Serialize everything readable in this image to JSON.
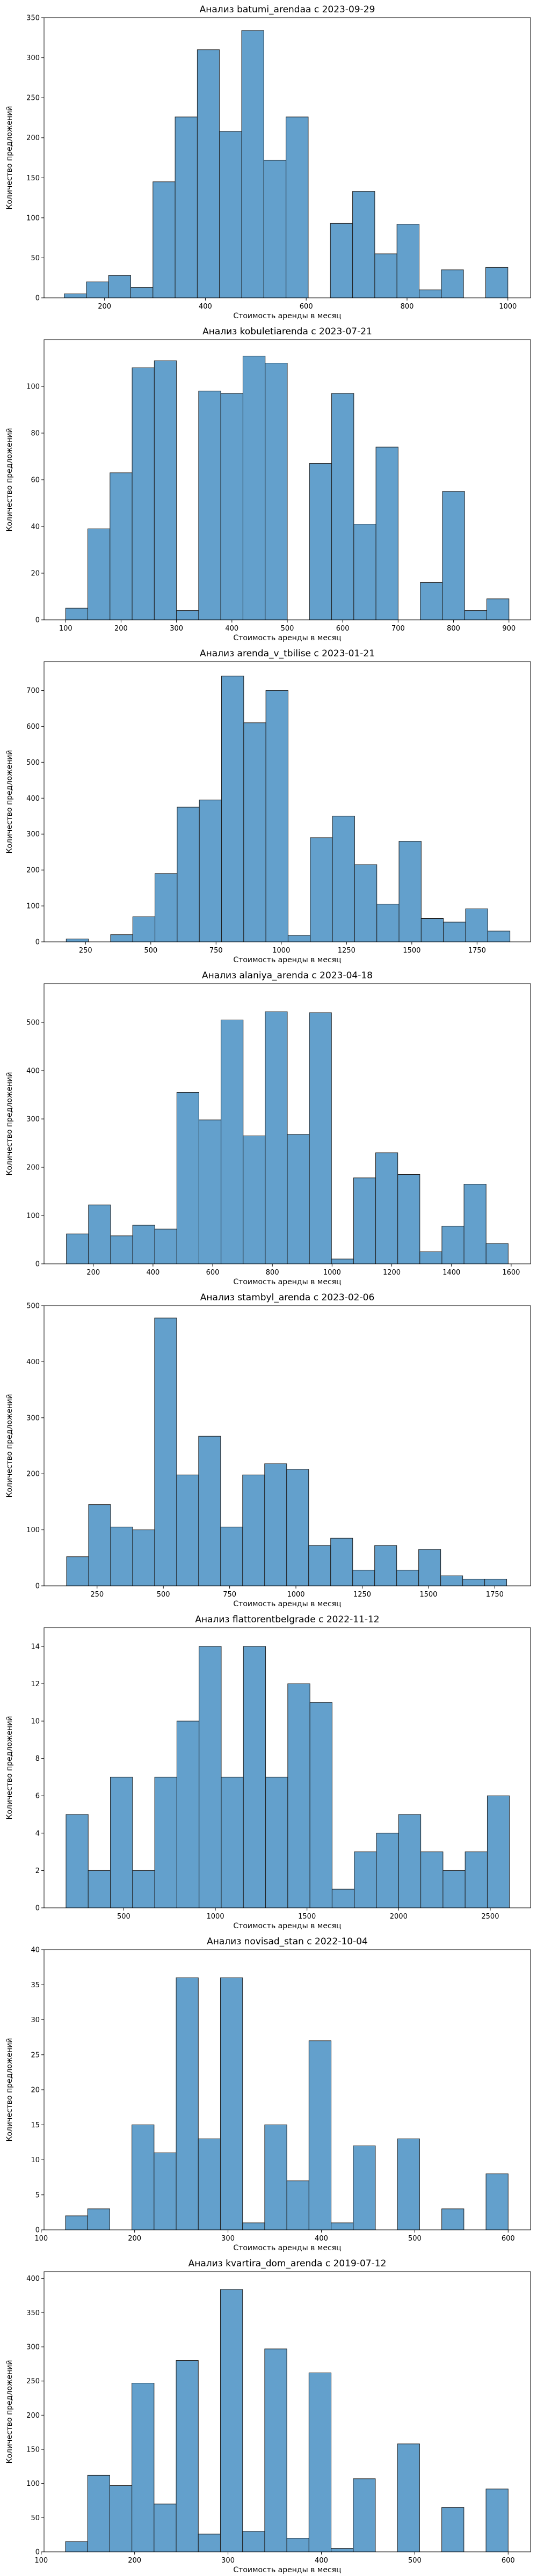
{
  "chart_data": [
    {
      "type": "bar",
      "title": "Анализ batumi_arendaa с 2023-09-29",
      "xlabel": "Стоимость аренды в месяц",
      "ylabel": "Количество предложений",
      "xlim": [
        80,
        1045
      ],
      "ylim": [
        0,
        350
      ],
      "xticks": [
        200,
        400,
        600,
        800,
        1000
      ],
      "yticks": [
        0,
        50,
        100,
        150,
        200,
        250,
        300,
        350
      ],
      "bin_start": 120,
      "bin_width": 44,
      "values": [
        5,
        20,
        28,
        13,
        145,
        226,
        310,
        208,
        334,
        172,
        226,
        0,
        93,
        133,
        55,
        92,
        10,
        35,
        0,
        38
      ],
      "color": "#5b9bc9",
      "grid": false
    },
    {
      "type": "bar",
      "title": "Анализ kobuletiarenda с 2023-07-21",
      "xlabel": "Стоимость аренды в месяц",
      "ylabel": "Количество предложений",
      "xlim": [
        61,
        939
      ],
      "ylim": [
        0,
        120
      ],
      "xticks": [
        100,
        200,
        300,
        400,
        500,
        600,
        700,
        800,
        900
      ],
      "yticks": [
        0,
        20,
        40,
        60,
        80,
        100
      ],
      "bin_start": 100,
      "bin_width": 40,
      "values": [
        5,
        39,
        63,
        108,
        111,
        4,
        98,
        97,
        113,
        110,
        0,
        67,
        97,
        41,
        74,
        0,
        16,
        55,
        4,
        9
      ],
      "color": "#5b9bc9",
      "grid": false
    },
    {
      "type": "bar",
      "title": "Анализ arenda_v_tbilise с 2023-01-21",
      "xlabel": "Стоимость аренды в месяц",
      "ylabel": "Количество предложений",
      "xlim": [
        91,
        1955
      ],
      "ylim": [
        0,
        780
      ],
      "xticks": [
        250,
        500,
        750,
        1000,
        1250,
        1500,
        1750
      ],
      "yticks": [
        0,
        100,
        200,
        300,
        400,
        500,
        600,
        700
      ],
      "bin_start": 176,
      "bin_width": 85,
      "values": [
        8,
        0,
        20,
        70,
        190,
        375,
        395,
        740,
        610,
        700,
        18,
        290,
        350,
        215,
        105,
        280,
        65,
        55,
        92,
        30
      ],
      "color": "#5b9bc9",
      "grid": false
    },
    {
      "type": "bar",
      "title": "Анализ alaniya_arenda с 2023-04-18",
      "xlabel": "Стоимость аренды в месяц",
      "ylabel": "Количество предложений",
      "xlim": [
        35,
        1665
      ],
      "ylim": [
        0,
        580
      ],
      "xticks": [
        200,
        400,
        600,
        800,
        1000,
        1200,
        1400,
        1600
      ],
      "yticks": [
        0,
        100,
        200,
        300,
        400,
        500
      ],
      "bin_start": 110,
      "bin_width": 74,
      "values": [
        62,
        122,
        58,
        80,
        72,
        355,
        298,
        505,
        265,
        522,
        268,
        520,
        10,
        178,
        230,
        185,
        25,
        78,
        165,
        42
      ],
      "color": "#5b9bc9",
      "grid": false
    },
    {
      "type": "bar",
      "title": "Анализ stambyl_arenda с 2023-02-06",
      "xlabel": "Стоимость аренды в месяц",
      "ylabel": "Количество предложений",
      "xlim": [
        50,
        1885
      ],
      "ylim": [
        0,
        500
      ],
      "xticks": [
        250,
        500,
        750,
        1000,
        1250,
        1500,
        1750
      ],
      "yticks": [
        0,
        100,
        200,
        300,
        400,
        500
      ],
      "bin_start": 135,
      "bin_width": 83,
      "values": [
        52,
        145,
        105,
        100,
        478,
        198,
        267,
        105,
        198,
        218,
        208,
        72,
        85,
        28,
        72,
        28,
        65,
        18,
        12,
        12
      ],
      "color": "#5b9bc9",
      "grid": false
    },
    {
      "type": "bar",
      "title": "Анализ flattorentbelgrade с 2022-11-12",
      "xlabel": "Стоимость аренды в месяц",
      "ylabel": "Количество предложений",
      "xlim": [
        65,
        2720
      ],
      "ylim": [
        0,
        15
      ],
      "xticks": [
        500,
        1000,
        1500,
        2000,
        2500
      ],
      "yticks": [
        0,
        2,
        4,
        6,
        8,
        10,
        12,
        14
      ],
      "bin_start": 185,
      "bin_width": 121,
      "values": [
        5,
        2,
        7,
        2,
        7,
        10,
        14,
        7,
        14,
        7,
        12,
        11,
        1,
        3,
        4,
        5,
        3,
        2,
        3,
        6
      ],
      "color": "#5b9bc9",
      "grid": false
    },
    {
      "type": "bar",
      "title": "Анализ novisad_stan с 2022-10-04",
      "xlabel": "Стоимость аренды в месяц",
      "ylabel": "Количество предложений",
      "xlim": [
        103,
        624
      ],
      "ylim": [
        0,
        40
      ],
      "xticks": [
        100,
        200,
        300,
        400,
        500,
        600
      ],
      "yticks": [
        0,
        5,
        10,
        15,
        20,
        25,
        30,
        35,
        40
      ],
      "bin_start": 126,
      "bin_width": 23.7,
      "values": [
        2,
        3,
        0,
        15,
        11,
        36,
        13,
        36,
        1,
        15,
        7,
        27,
        1,
        12,
        0,
        13,
        0,
        3,
        0,
        8
      ],
      "color": "#5b9bc9",
      "grid": false
    },
    {
      "type": "bar",
      "title": "Анализ kvartira_dom_arenda с 2019-07-12",
      "xlabel": "Стоимость аренды в месяц",
      "ylabel": "Количество предложений",
      "xlim": [
        103,
        624
      ],
      "ylim": [
        0,
        410
      ],
      "xticks": [
        100,
        200,
        300,
        400,
        500,
        600
      ],
      "yticks": [
        0,
        50,
        100,
        150,
        200,
        250,
        300,
        350,
        400
      ],
      "bin_start": 126,
      "bin_width": 23.7,
      "values": [
        15,
        112,
        97,
        247,
        70,
        280,
        26,
        384,
        30,
        297,
        20,
        262,
        5,
        107,
        0,
        158,
        0,
        65,
        0,
        92
      ],
      "color": "#5b9bc9",
      "grid": false
    }
  ]
}
